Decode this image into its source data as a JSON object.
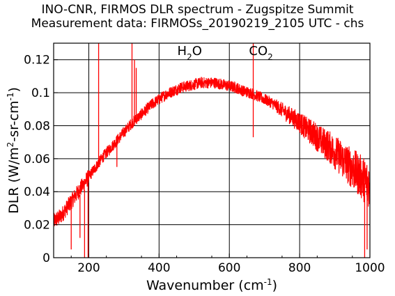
{
  "chart_data": {
    "type": "line",
    "title": "INO-CNR, FIRMOS DLR spectrum - Zugspitze Summit",
    "subtitle": "Measurement data: FIRMOSs_20190219_2105 UTC - chs",
    "xlabel_text": "Wavenumber (cm",
    "xlabel_sup": "-1",
    "xlabel_close": ")",
    "ylabel_parts": [
      "DLR (W/m",
      "2",
      "-sr-cm",
      "-1",
      ")"
    ],
    "xlim": [
      100,
      1000
    ],
    "ylim": [
      0,
      0.13
    ],
    "xticks": [
      200,
      400,
      600,
      800,
      1000
    ],
    "yticks": [
      0,
      0.02,
      0.04,
      0.06,
      0.08,
      0.1,
      0.12
    ],
    "ytick_labels": [
      "0",
      "0.02",
      "0.04",
      "0.06",
      "0.08",
      "0.1",
      "0.12"
    ],
    "grid": true,
    "series_color": "#ff0000",
    "annotations": [
      {
        "main": "H",
        "sub": "2",
        "rest": "O",
        "x": 487
      },
      {
        "main": "CO",
        "sub": "2",
        "rest": "",
        "x": 690
      }
    ],
    "series": [
      {
        "points": [
          [
            100,
            0.022
          ],
          [
            120,
            0.025
          ],
          [
            140,
            0.031
          ],
          [
            160,
            0.037
          ],
          [
            180,
            0.043
          ],
          [
            200,
            0.049
          ],
          [
            220,
            0.055
          ],
          [
            240,
            0.061
          ],
          [
            260,
            0.066
          ],
          [
            280,
            0.071
          ],
          [
            300,
            0.076
          ],
          [
            320,
            0.081
          ],
          [
            340,
            0.085
          ],
          [
            360,
            0.089
          ],
          [
            380,
            0.093
          ],
          [
            400,
            0.096
          ],
          [
            420,
            0.099
          ],
          [
            440,
            0.101
          ],
          [
            460,
            0.103
          ],
          [
            480,
            0.104
          ],
          [
            500,
            0.105
          ],
          [
            520,
            0.106
          ],
          [
            540,
            0.106
          ],
          [
            560,
            0.106
          ],
          [
            580,
            0.105
          ],
          [
            600,
            0.104
          ],
          [
            620,
            0.103
          ],
          [
            640,
            0.101
          ],
          [
            660,
            0.1
          ],
          [
            680,
            0.098
          ],
          [
            700,
            0.096
          ],
          [
            720,
            0.094
          ],
          [
            740,
            0.091
          ],
          [
            760,
            0.088
          ],
          [
            780,
            0.085
          ],
          [
            800,
            0.082
          ],
          [
            820,
            0.078
          ],
          [
            840,
            0.075
          ],
          [
            860,
            0.071
          ],
          [
            880,
            0.068
          ],
          [
            900,
            0.064
          ],
          [
            920,
            0.06
          ],
          [
            940,
            0.056
          ],
          [
            960,
            0.052
          ],
          [
            980,
            0.048
          ],
          [
            1000,
            0.044
          ]
        ]
      }
    ],
    "spikes": [
      {
        "x": 150,
        "y0": 0.035,
        "y1": 0.005
      },
      {
        "x": 175,
        "y0": 0.038,
        "y1": 0.012
      },
      {
        "x": 188,
        "y0": 0.041,
        "y1": 0.0
      },
      {
        "x": 198,
        "y0": 0.045,
        "y1": 0.0
      },
      {
        "x": 228,
        "y0": 0.055,
        "y1": 0.13
      },
      {
        "x": 280,
        "y0": 0.07,
        "y1": 0.055
      },
      {
        "x": 323,
        "y0": 0.082,
        "y1": 0.13
      },
      {
        "x": 330,
        "y0": 0.083,
        "y1": 0.12
      },
      {
        "x": 335,
        "y0": 0.084,
        "y1": 0.115
      },
      {
        "x": 668,
        "y0": 0.1,
        "y1": 0.13
      },
      {
        "x": 668,
        "y0": 0.1,
        "y1": 0.073
      },
      {
        "x": 985,
        "y0": 0.045,
        "y1": 0.0
      },
      {
        "x": 992,
        "y0": 0.044,
        "y1": 0.005
      }
    ]
  }
}
